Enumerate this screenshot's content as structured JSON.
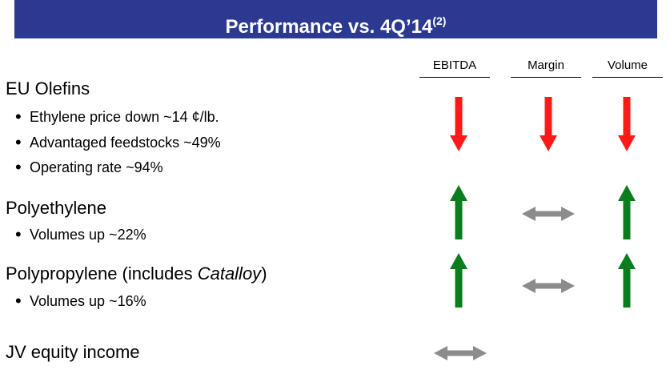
{
  "header": {
    "title": "Performance vs. 4Q’14",
    "title_note": "(2)"
  },
  "columns": [
    "EBITDA",
    "Margin",
    "Volume"
  ],
  "sections": [
    {
      "title": "EU Olefins",
      "bullets": [
        "Ethylene price down ~14 ¢/lb.",
        "Advantaged feedstocks ~49%",
        "Operating rate ~94%"
      ]
    },
    {
      "title": "Polyethylene",
      "bullets": [
        "Volumes up ~22%"
      ]
    },
    {
      "title_parts": [
        "Polypropylene (includes ",
        "Catalloy",
        ")"
      ],
      "bullets": [
        "Volumes up ~16%"
      ]
    },
    {
      "title": "JV equity income"
    }
  ]
}
